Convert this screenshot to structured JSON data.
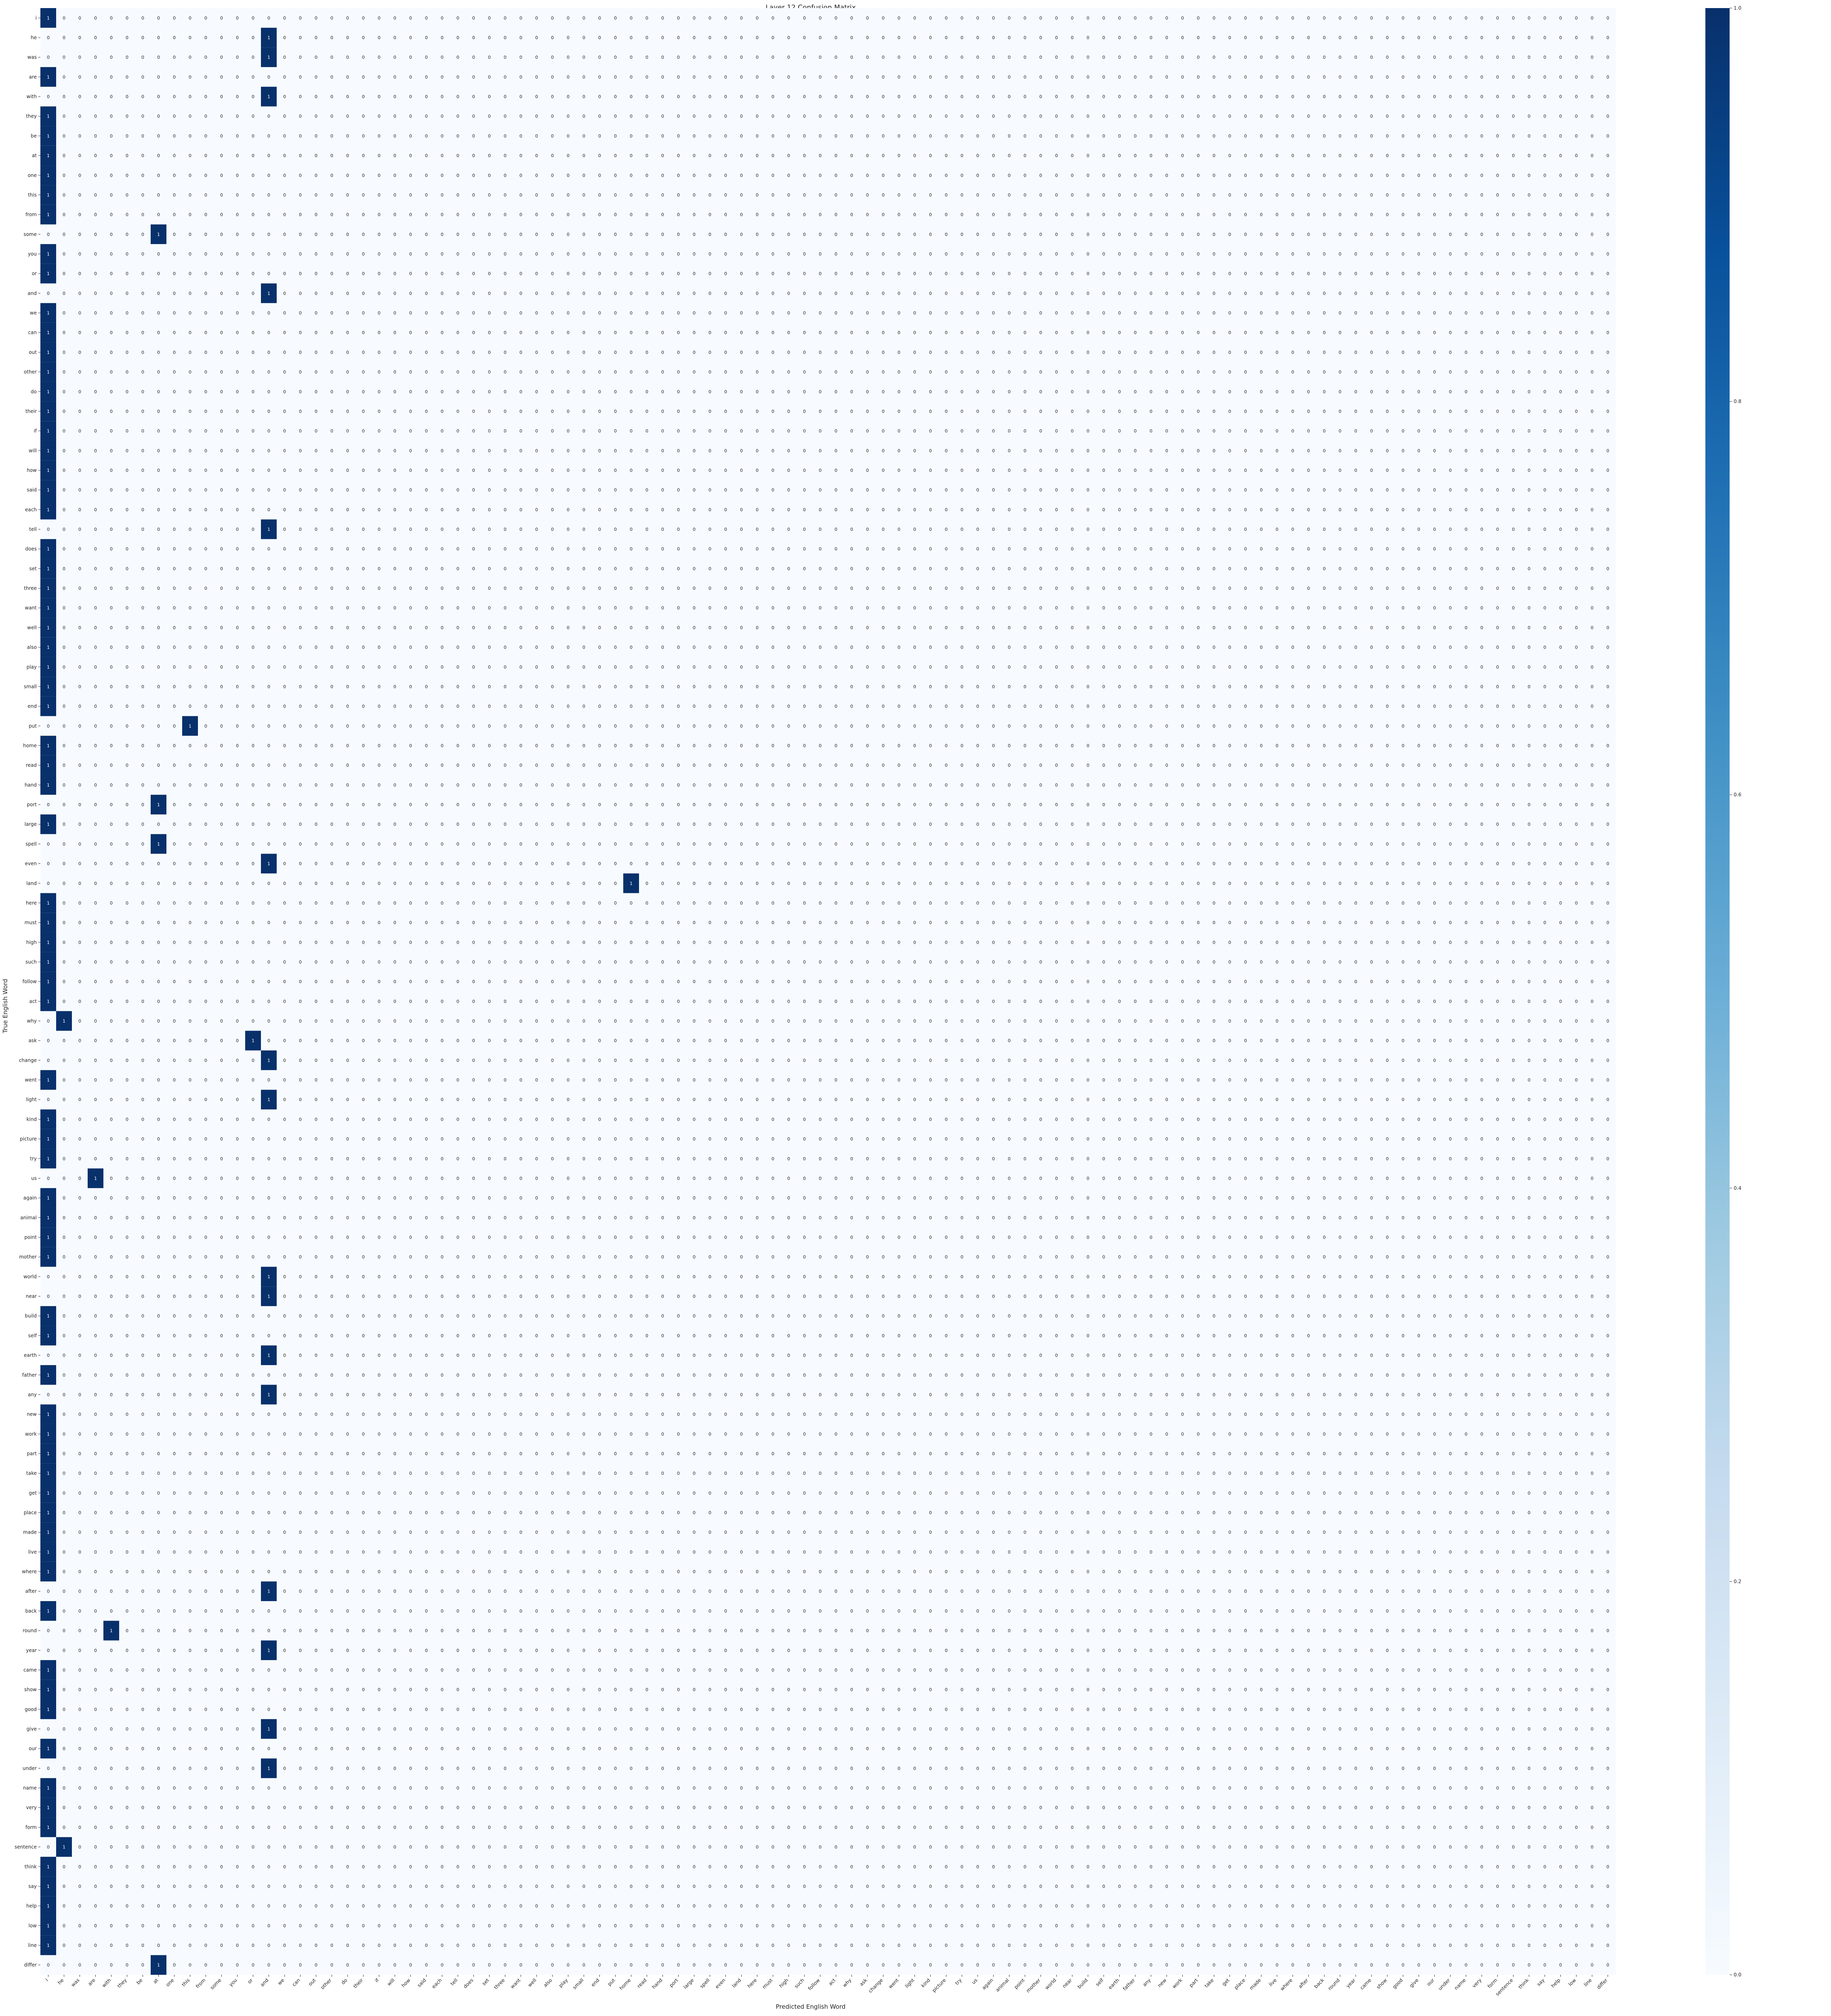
{
  "chart_data": {
    "type": "heatmap",
    "title": "Layer 12 Confusion Matrix",
    "xlabel": "Predicted English Word",
    "ylabel": "True English Word",
    "row_labels": [
      "i",
      "he",
      "was",
      "are",
      "with",
      "they",
      "be",
      "at",
      "one",
      "this",
      "from",
      "some",
      "you",
      "or",
      "and",
      "we",
      "can",
      "out",
      "other",
      "do",
      "their",
      "if",
      "will",
      "how",
      "said",
      "each",
      "tell",
      "does",
      "set",
      "three",
      "want",
      "well",
      "also",
      "play",
      "small",
      "end",
      "put",
      "home",
      "read",
      "hand",
      "port",
      "large",
      "spell",
      "even",
      "land",
      "here",
      "must",
      "high",
      "such",
      "follow",
      "act",
      "why",
      "ask",
      "change",
      "went",
      "light",
      "kind",
      "picture",
      "try",
      "us",
      "again",
      "animal",
      "point",
      "mother",
      "world",
      "near",
      "build",
      "self",
      "earth",
      "father",
      "any",
      "new",
      "work",
      "part",
      "take",
      "get",
      "place",
      "made",
      "live",
      "where",
      "after",
      "back",
      "round",
      "year",
      "came",
      "show",
      "good",
      "give",
      "our",
      "under",
      "name",
      "very",
      "form",
      "sentence",
      "think",
      "say",
      "help",
      "low",
      "line",
      "differ"
    ],
    "col_labels": [
      "i",
      "he",
      "was",
      "are",
      "with",
      "they",
      "be",
      "at",
      "one",
      "this",
      "from",
      "some",
      "you",
      "or",
      "and",
      "we",
      "can",
      "out",
      "other",
      "do",
      "their",
      "if",
      "will",
      "how",
      "said",
      "each",
      "tell",
      "does",
      "set",
      "three",
      "want",
      "well",
      "also",
      "play",
      "small",
      "end",
      "put",
      "home",
      "read",
      "hand",
      "port",
      "large",
      "spell",
      "even",
      "land",
      "here",
      "must",
      "high",
      "such",
      "follow",
      "act",
      "why",
      "ask",
      "change",
      "went",
      "light",
      "kind",
      "picture",
      "try",
      "us",
      "again",
      "animal",
      "point",
      "mother",
      "world",
      "near",
      "build",
      "self",
      "earth",
      "father",
      "any",
      "new",
      "work",
      "part",
      "take",
      "get",
      "place",
      "made",
      "live",
      "where",
      "after",
      "back",
      "round",
      "year",
      "came",
      "show",
      "good",
      "give",
      "our",
      "under",
      "name",
      "very",
      "form",
      "sentence",
      "think",
      "say",
      "help",
      "low",
      "line",
      "differ"
    ],
    "predicted_index": [
      0,
      14,
      14,
      0,
      14,
      0,
      0,
      0,
      0,
      0,
      0,
      7,
      0,
      0,
      14,
      0,
      0,
      0,
      0,
      0,
      0,
      0,
      0,
      0,
      0,
      0,
      14,
      0,
      0,
      0,
      0,
      0,
      0,
      0,
      0,
      0,
      9,
      0,
      0,
      0,
      7,
      0,
      7,
      14,
      37,
      0,
      0,
      0,
      0,
      0,
      0,
      1,
      13,
      14,
      0,
      14,
      0,
      0,
      0,
      3,
      0,
      0,
      0,
      0,
      14,
      14,
      0,
      0,
      14,
      0,
      14,
      0,
      0,
      0,
      0,
      0,
      0,
      0,
      0,
      0,
      14,
      0,
      4,
      14,
      0,
      0,
      0,
      14,
      0,
      14,
      0,
      0,
      0,
      1,
      0,
      0,
      0,
      0,
      0,
      7
    ],
    "hit_value": "1",
    "miss_value": "0",
    "colorbar": {
      "range": [
        0.0,
        1.0
      ],
      "ticks": [
        "0.0",
        "0.2",
        "0.4",
        "0.6",
        "0.8",
        "1.0"
      ],
      "color_low": "#f7fbff",
      "color_high": "#08306b"
    },
    "grid": false,
    "legend": "colorbar-right"
  }
}
